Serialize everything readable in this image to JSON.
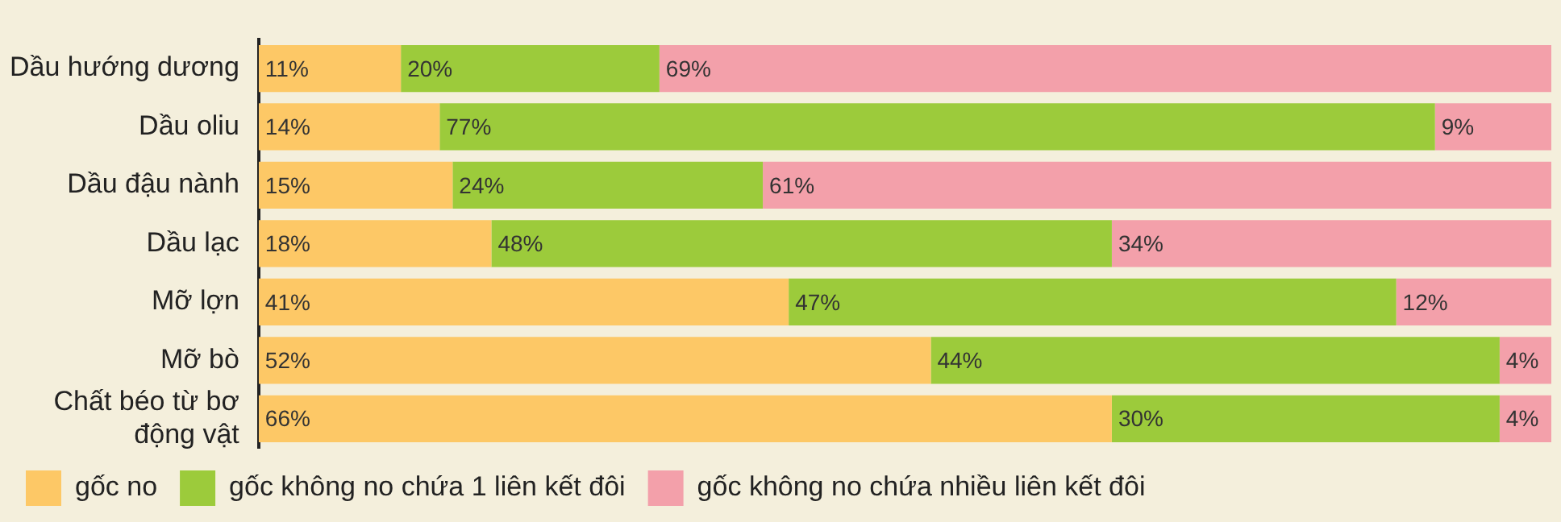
{
  "chart_data": {
    "type": "bar",
    "orientation": "horizontal",
    "stacked": true,
    "categories": [
      "Dầu hướng dương",
      "Dầu oliu",
      "Dầu đậu nành",
      "Dầu lạc",
      "Mỡ lợn",
      "Mỡ bò",
      "Chất béo từ bơ động vật"
    ],
    "series": [
      {
        "name": "gốc no",
        "color": "#fdc866",
        "values": [
          11,
          14,
          15,
          18,
          41,
          52,
          66
        ],
        "value_labels": [
          "11%",
          "14%",
          "15%",
          "18%",
          "41%",
          "52%",
          "66%"
        ]
      },
      {
        "name": "gốc không no chứa 1 liên kết đôi",
        "color": "#9ccb3b",
        "values": [
          20,
          77,
          24,
          48,
          47,
          44,
          30
        ],
        "value_labels": [
          "20%",
          "77%",
          "24%",
          "48%",
          "47%",
          "44%",
          "30%"
        ]
      },
      {
        "name": "gốc không no chứa nhiều liên kết đôi",
        "color": "#f3a0aa",
        "values": [
          69,
          9,
          61,
          34,
          12,
          4,
          4
        ],
        "value_labels": [
          "69%",
          "9%",
          "61%",
          "34%",
          "12%",
          "4%",
          "4%"
        ]
      }
    ],
    "tick_labels": "y",
    "legend": "bottom"
  }
}
